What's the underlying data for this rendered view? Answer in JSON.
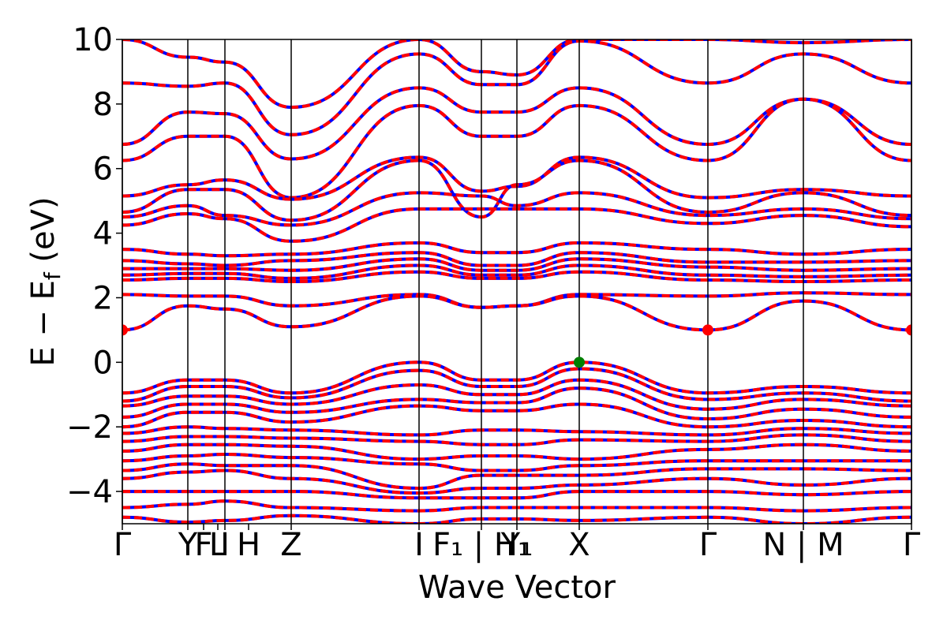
{
  "chart_data": {
    "type": "line",
    "title": "",
    "xlabel": "Wave Vector",
    "ylabel": "E − E",
    "ylabel_subscript": "f",
    "ylabel_unit": " (eV)",
    "ylim": [
      -5,
      10
    ],
    "xlim": [
      0,
      1
    ],
    "yticks": [
      -4,
      -2,
      0,
      2,
      4,
      6,
      8,
      10
    ],
    "ytick_labels": [
      "−4",
      "−2",
      "0",
      "2",
      "4",
      "6",
      "8",
      "10"
    ],
    "kpath": [
      {
        "label": "Γ",
        "x": 0.0
      },
      {
        "label": "Y",
        "x": 0.083
      },
      {
        "label": "F",
        "x": 0.103
      },
      {
        "label": "L",
        "x": 0.121
      },
      {
        "label": "I",
        "x": 0.13
      },
      {
        "label": "H",
        "x": 0.16
      },
      {
        "label": "Z",
        "x": 0.214
      },
      {
        "label": "I",
        "x": 0.376
      },
      {
        "label": "F₁ | H₁",
        "x": 0.455
      },
      {
        "label": "Y₁",
        "x": 0.5
      },
      {
        "label": "X",
        "x": 0.579
      },
      {
        "label": "Γ",
        "x": 0.742
      },
      {
        "label": "N | M",
        "x": 0.863
      },
      {
        "label": "Γ",
        "x": 1.0
      }
    ],
    "vlines": [
      0.0,
      0.083,
      0.13,
      0.214,
      0.376,
      0.455,
      0.5,
      0.579,
      0.742,
      0.863,
      1.0
    ],
    "series": [
      {
        "style": "spin-up",
        "color": "#0000ff",
        "dash": "solid"
      },
      {
        "style": "spin-down",
        "color": "#ff0000",
        "dash": "dashed"
      }
    ],
    "bands": [
      [
        [
          0,
          10.0
        ],
        [
          0.083,
          9.45
        ],
        [
          0.13,
          9.3
        ],
        [
          0.214,
          7.9
        ],
        [
          0.376,
          10.0
        ],
        [
          0.455,
          9.0
        ],
        [
          0.5,
          8.9
        ],
        [
          0.579,
          10.0
        ],
        [
          0.742,
          10.0
        ],
        [
          0.863,
          9.9
        ],
        [
          1,
          10.0
        ]
      ],
      [
        [
          0,
          8.65
        ],
        [
          0.083,
          8.55
        ],
        [
          0.13,
          8.65
        ],
        [
          0.214,
          7.05
        ],
        [
          0.376,
          9.55
        ],
        [
          0.455,
          8.6
        ],
        [
          0.5,
          8.6
        ],
        [
          0.579,
          9.95
        ],
        [
          0.742,
          8.65
        ],
        [
          0.863,
          9.55
        ],
        [
          1,
          8.65
        ]
      ],
      [
        [
          0,
          6.75
        ],
        [
          0.083,
          7.75
        ],
        [
          0.13,
          7.7
        ],
        [
          0.214,
          6.3
        ],
        [
          0.376,
          8.5
        ],
        [
          0.455,
          7.75
        ],
        [
          0.5,
          7.75
        ],
        [
          0.579,
          8.5
        ],
        [
          0.742,
          6.75
        ],
        [
          0.863,
          8.15
        ],
        [
          1,
          6.75
        ]
      ],
      [
        [
          0,
          6.25
        ],
        [
          0.083,
          7.0
        ],
        [
          0.13,
          7.0
        ],
        [
          0.214,
          5.1
        ],
        [
          0.376,
          7.95
        ],
        [
          0.455,
          7.0
        ],
        [
          0.5,
          7.0
        ],
        [
          0.579,
          7.95
        ],
        [
          0.742,
          6.25
        ],
        [
          0.863,
          8.15
        ],
        [
          1,
          6.25
        ]
      ],
      [
        [
          0,
          5.15
        ],
        [
          0.083,
          5.5
        ],
        [
          0.13,
          5.65
        ],
        [
          0.214,
          5.05
        ],
        [
          0.376,
          6.35
        ],
        [
          0.455,
          5.3
        ],
        [
          0.5,
          5.45
        ],
        [
          0.579,
          6.35
        ],
        [
          0.742,
          5.1
        ],
        [
          0.863,
          5.35
        ],
        [
          1,
          5.15
        ]
      ],
      [
        [
          0,
          4.65
        ],
        [
          0.083,
          5.35
        ],
        [
          0.13,
          5.35
        ],
        [
          0.214,
          4.4
        ],
        [
          0.376,
          6.25
        ],
        [
          0.455,
          4.5
        ],
        [
          0.5,
          5.5
        ],
        [
          0.579,
          6.25
        ],
        [
          0.742,
          4.65
        ],
        [
          0.863,
          5.25
        ],
        [
          1,
          4.55
        ]
      ],
      [
        [
          0,
          4.5
        ],
        [
          0.083,
          4.85
        ],
        [
          0.13,
          4.55
        ],
        [
          0.214,
          4.25
        ],
        [
          0.376,
          5.25
        ],
        [
          0.455,
          5.15
        ],
        [
          0.5,
          4.85
        ],
        [
          0.579,
          5.25
        ],
        [
          0.742,
          4.55
        ],
        [
          0.863,
          4.75
        ],
        [
          1,
          4.45
        ]
      ],
      [
        [
          0,
          4.25
        ],
        [
          0.083,
          4.6
        ],
        [
          0.13,
          4.45
        ],
        [
          0.214,
          3.75
        ],
        [
          0.376,
          4.75
        ],
        [
          0.455,
          4.75
        ],
        [
          0.5,
          4.75
        ],
        [
          0.579,
          4.75
        ],
        [
          0.742,
          4.3
        ],
        [
          0.863,
          4.55
        ],
        [
          1,
          4.2
        ]
      ],
      [
        [
          0,
          3.5
        ],
        [
          0.083,
          3.35
        ],
        [
          0.13,
          3.3
        ],
        [
          0.214,
          3.35
        ],
        [
          0.376,
          3.7
        ],
        [
          0.455,
          3.4
        ],
        [
          0.5,
          3.4
        ],
        [
          0.579,
          3.7
        ],
        [
          0.742,
          3.5
        ],
        [
          0.863,
          3.35
        ],
        [
          1,
          3.5
        ]
      ],
      [
        [
          0,
          3.15
        ],
        [
          0.083,
          3.05
        ],
        [
          0.13,
          3.0
        ],
        [
          0.214,
          3.15
        ],
        [
          0.376,
          3.4
        ],
        [
          0.455,
          3.0
        ],
        [
          0.5,
          3.0
        ],
        [
          0.579,
          3.4
        ],
        [
          0.742,
          3.1
        ],
        [
          0.863,
          3.1
        ],
        [
          1,
          3.15
        ]
      ],
      [
        [
          0,
          2.9
        ],
        [
          0.083,
          2.9
        ],
        [
          0.13,
          2.9
        ],
        [
          0.214,
          2.85
        ],
        [
          0.376,
          3.2
        ],
        [
          0.455,
          2.85
        ],
        [
          0.5,
          2.85
        ],
        [
          0.579,
          3.2
        ],
        [
          0.742,
          2.95
        ],
        [
          0.863,
          2.85
        ],
        [
          1,
          2.9
        ]
      ],
      [
        [
          0,
          2.7
        ],
        [
          0.083,
          2.75
        ],
        [
          0.13,
          2.75
        ],
        [
          0.214,
          2.6
        ],
        [
          0.376,
          3.0
        ],
        [
          0.455,
          2.7
        ],
        [
          0.5,
          2.7
        ],
        [
          0.579,
          3.0
        ],
        [
          0.742,
          2.7
        ],
        [
          0.863,
          2.65
        ],
        [
          1,
          2.7
        ]
      ],
      [
        [
          0,
          2.55
        ],
        [
          0.083,
          2.6
        ],
        [
          0.13,
          2.6
        ],
        [
          0.214,
          2.5
        ],
        [
          0.376,
          2.8
        ],
        [
          0.455,
          2.6
        ],
        [
          0.5,
          2.6
        ],
        [
          0.579,
          2.8
        ],
        [
          0.742,
          2.55
        ],
        [
          0.863,
          2.5
        ],
        [
          1,
          2.55
        ]
      ],
      [
        [
          0,
          2.1
        ],
        [
          0.083,
          2.05
        ],
        [
          0.13,
          2.05
        ],
        [
          0.214,
          1.75
        ],
        [
          0.376,
          2.1
        ],
        [
          0.455,
          1.7
        ],
        [
          0.5,
          1.75
        ],
        [
          0.579,
          2.1
        ],
        [
          0.742,
          2.05
        ],
        [
          0.863,
          2.15
        ],
        [
          1,
          2.1
        ]
      ],
      [
        [
          0,
          1.0
        ],
        [
          0.083,
          1.75
        ],
        [
          0.13,
          1.65
        ],
        [
          0.214,
          1.1
        ],
        [
          0.376,
          2.05
        ],
        [
          0.455,
          1.7
        ],
        [
          0.5,
          1.75
        ],
        [
          0.579,
          2.05
        ],
        [
          0.742,
          1.0
        ],
        [
          0.863,
          1.9
        ],
        [
          1,
          1.0
        ]
      ],
      [
        [
          0,
          -0.95
        ],
        [
          0.083,
          -0.55
        ],
        [
          0.13,
          -0.55
        ],
        [
          0.214,
          -0.95
        ],
        [
          0.376,
          0.0
        ],
        [
          0.455,
          -0.55
        ],
        [
          0.5,
          -0.55
        ],
        [
          0.579,
          0.0
        ],
        [
          0.742,
          -0.95
        ],
        [
          0.863,
          -0.75
        ],
        [
          1,
          -0.95
        ]
      ],
      [
        [
          0,
          -1.2
        ],
        [
          0.083,
          -0.75
        ],
        [
          0.13,
          -0.75
        ],
        [
          0.214,
          -1.1
        ],
        [
          0.376,
          -0.25
        ],
        [
          0.455,
          -0.75
        ],
        [
          0.5,
          -0.75
        ],
        [
          0.579,
          -0.2
        ],
        [
          0.742,
          -1.15
        ],
        [
          0.863,
          -0.95
        ],
        [
          1,
          -1.2
        ]
      ],
      [
        [
          0,
          -1.35
        ],
        [
          0.083,
          -1.05
        ],
        [
          0.13,
          -1.05
        ],
        [
          0.214,
          -1.3
        ],
        [
          0.376,
          -0.7
        ],
        [
          0.455,
          -1.0
        ],
        [
          0.5,
          -1.0
        ],
        [
          0.579,
          -0.55
        ],
        [
          0.742,
          -1.45
        ],
        [
          0.863,
          -1.15
        ],
        [
          1,
          -1.35
        ]
      ],
      [
        [
          0,
          -1.7
        ],
        [
          0.083,
          -1.3
        ],
        [
          0.13,
          -1.3
        ],
        [
          0.214,
          -1.55
        ],
        [
          0.376,
          -1.15
        ],
        [
          0.455,
          -1.25
        ],
        [
          0.5,
          -1.25
        ],
        [
          0.579,
          -0.8
        ],
        [
          0.742,
          -1.75
        ],
        [
          0.863,
          -1.45
        ],
        [
          1,
          -1.7
        ]
      ],
      [
        [
          0,
          -2.0
        ],
        [
          0.083,
          -1.55
        ],
        [
          0.13,
          -1.55
        ],
        [
          0.214,
          -1.85
        ],
        [
          0.376,
          -1.35
        ],
        [
          0.455,
          -1.5
        ],
        [
          0.5,
          -1.5
        ],
        [
          0.579,
          -1.3
        ],
        [
          0.742,
          -2.0
        ],
        [
          0.863,
          -1.8
        ],
        [
          1,
          -2.0
        ]
      ],
      [
        [
          0,
          -2.2
        ],
        [
          0.083,
          -2.0
        ],
        [
          0.13,
          -2.05
        ],
        [
          0.214,
          -2.1
        ],
        [
          0.376,
          -2.25
        ],
        [
          0.455,
          -2.1
        ],
        [
          0.5,
          -2.1
        ],
        [
          0.579,
          -2.15
        ],
        [
          0.742,
          -2.25
        ],
        [
          0.863,
          -2.05
        ],
        [
          1,
          -2.2
        ]
      ],
      [
        [
          0,
          -2.45
        ],
        [
          0.083,
          -2.3
        ],
        [
          0.13,
          -2.3
        ],
        [
          0.214,
          -2.35
        ],
        [
          0.376,
          -2.45
        ],
        [
          0.455,
          -2.55
        ],
        [
          0.5,
          -2.55
        ],
        [
          0.579,
          -2.4
        ],
        [
          0.742,
          -2.45
        ],
        [
          0.863,
          -2.25
        ],
        [
          1,
          -2.45
        ]
      ],
      [
        [
          0,
          -2.75
        ],
        [
          0.083,
          -2.55
        ],
        [
          0.13,
          -2.55
        ],
        [
          0.214,
          -2.6
        ],
        [
          0.376,
          -3.0
        ],
        [
          0.455,
          -2.9
        ],
        [
          0.5,
          -2.9
        ],
        [
          0.579,
          -3.0
        ],
        [
          0.742,
          -2.7
        ],
        [
          0.863,
          -2.55
        ],
        [
          1,
          -2.75
        ]
      ],
      [
        [
          0,
          -3.05
        ],
        [
          0.083,
          -2.9
        ],
        [
          0.13,
          -2.85
        ],
        [
          0.214,
          -2.95
        ],
        [
          0.376,
          -3.15
        ],
        [
          0.455,
          -3.35
        ],
        [
          0.5,
          -3.35
        ],
        [
          0.579,
          -3.2
        ],
        [
          0.742,
          -3.05
        ],
        [
          0.863,
          -3.05
        ],
        [
          1,
          -3.05
        ]
      ],
      [
        [
          0,
          -3.35
        ],
        [
          0.083,
          -3.15
        ],
        [
          0.13,
          -3.2
        ],
        [
          0.214,
          -3.2
        ],
        [
          0.376,
          -3.9
        ],
        [
          0.455,
          -3.5
        ],
        [
          0.5,
          -3.5
        ],
        [
          0.579,
          -3.5
        ],
        [
          0.742,
          -3.3
        ],
        [
          0.863,
          -3.3
        ],
        [
          1,
          -3.35
        ]
      ],
      [
        [
          0,
          -3.6
        ],
        [
          0.083,
          -3.4
        ],
        [
          0.13,
          -3.35
        ],
        [
          0.214,
          -3.6
        ],
        [
          0.376,
          -4.05
        ],
        [
          0.455,
          -3.9
        ],
        [
          0.5,
          -3.9
        ],
        [
          0.579,
          -3.8
        ],
        [
          0.742,
          -3.6
        ],
        [
          0.863,
          -3.8
        ],
        [
          1,
          -3.6
        ]
      ],
      [
        [
          0,
          -4.0
        ],
        [
          0.083,
          -4.0
        ],
        [
          0.13,
          -4.0
        ],
        [
          0.214,
          -4.0
        ],
        [
          0.376,
          -4.2
        ],
        [
          0.455,
          -4.2
        ],
        [
          0.5,
          -4.2
        ],
        [
          0.579,
          -4.0
        ],
        [
          0.742,
          -4.0
        ],
        [
          0.863,
          -4.1
        ],
        [
          1,
          -4.0
        ]
      ],
      [
        [
          0,
          -4.5
        ],
        [
          0.083,
          -4.4
        ],
        [
          0.13,
          -4.3
        ],
        [
          0.214,
          -4.5
        ],
        [
          0.376,
          -4.6
        ],
        [
          0.455,
          -4.5
        ],
        [
          0.5,
          -4.5
        ],
        [
          0.579,
          -4.5
        ],
        [
          0.742,
          -4.5
        ],
        [
          0.863,
          -4.6
        ],
        [
          1,
          -4.5
        ]
      ],
      [
        [
          0,
          -4.8
        ],
        [
          0.083,
          -4.95
        ],
        [
          0.13,
          -4.9
        ],
        [
          0.214,
          -4.75
        ],
        [
          0.376,
          -5.0
        ],
        [
          0.455,
          -4.85
        ],
        [
          0.5,
          -4.85
        ],
        [
          0.579,
          -4.9
        ],
        [
          0.742,
          -4.8
        ],
        [
          0.863,
          -5.0
        ],
        [
          1,
          -4.8
        ]
      ]
    ],
    "markers": [
      {
        "x": 0.0,
        "y": 1.0,
        "color": "#ff0000",
        "kind": "conduction-band-minimum"
      },
      {
        "x": 0.742,
        "y": 1.0,
        "color": "#ff0000",
        "kind": "conduction-band-minimum"
      },
      {
        "x": 1.0,
        "y": 1.0,
        "color": "#ff0000",
        "kind": "conduction-band-minimum"
      },
      {
        "x": 0.579,
        "y": 0.0,
        "color": "#008000",
        "kind": "valence-band-maximum"
      }
    ],
    "grid": false,
    "legend": "none"
  }
}
